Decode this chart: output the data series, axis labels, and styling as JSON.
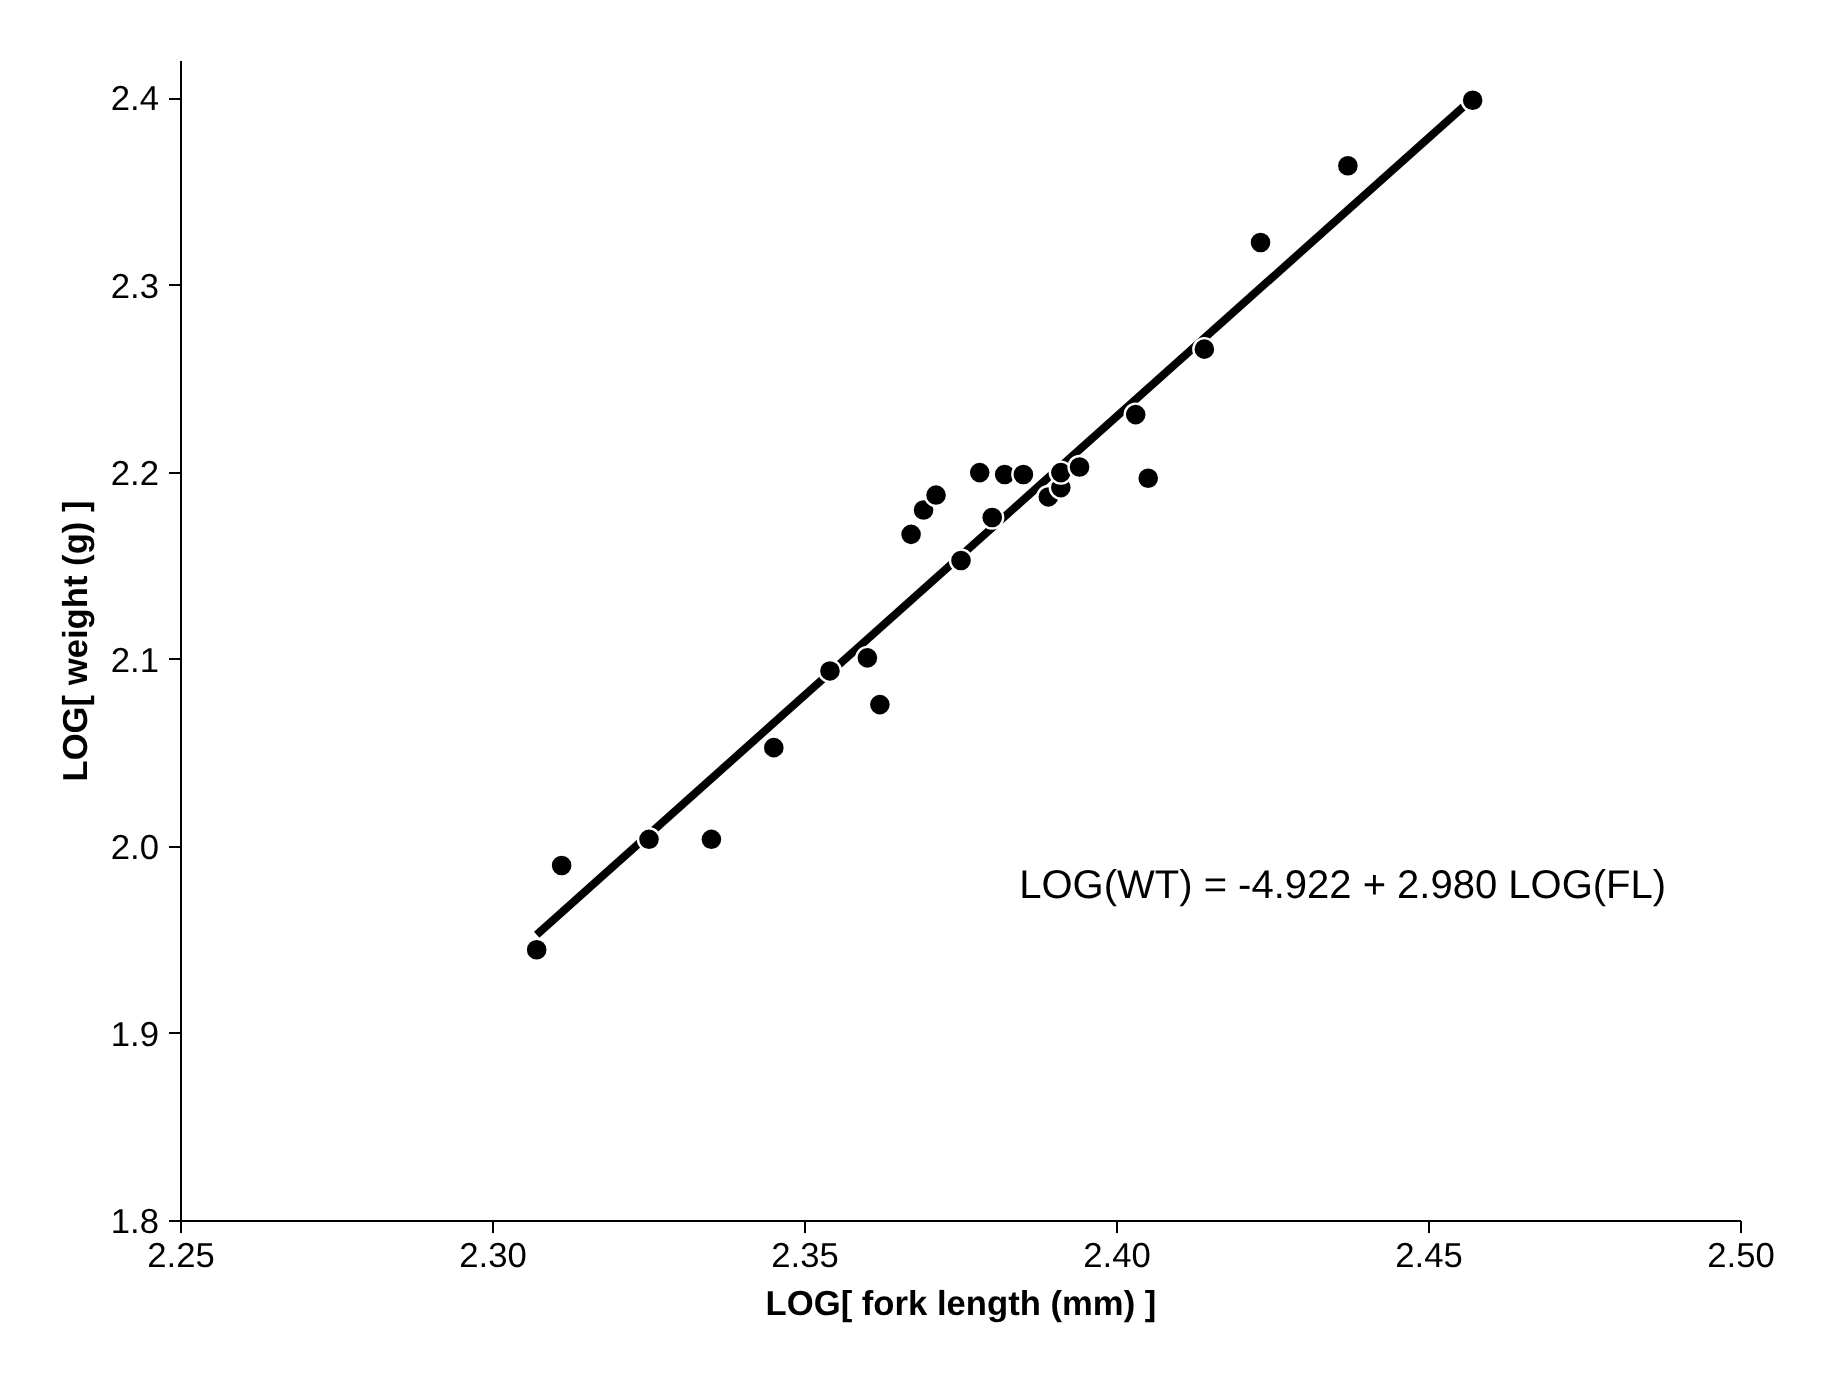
{
  "chart_data": {
    "type": "scatter",
    "xlabel": "LOG[ fork length (mm) ]",
    "ylabel": "LOG[ weight (g) ]",
    "xlim": [
      2.25,
      2.5
    ],
    "xticks": [
      {
        "value": 2.25,
        "label": "2.25"
      },
      {
        "value": 2.3,
        "label": "2.30"
      },
      {
        "value": 2.35,
        "label": "2.35"
      },
      {
        "value": 2.4,
        "label": "2.40"
      },
      {
        "value": 2.45,
        "label": "2.45"
      },
      {
        "value": 2.5,
        "label": "2.50"
      }
    ],
    "ylim": [
      1.8,
      2.42
    ],
    "yticks": [
      {
        "value": 1.8,
        "label": "1.8"
      },
      {
        "value": 1.9,
        "label": "1.9"
      },
      {
        "value": 2.0,
        "label": "2.0"
      },
      {
        "value": 2.1,
        "label": "2.1"
      },
      {
        "value": 2.2,
        "label": "2.2"
      },
      {
        "value": 2.3,
        "label": "2.3"
      },
      {
        "value": 2.4,
        "label": "2.4"
      }
    ],
    "grid": false,
    "marker": "circle",
    "annotations": [
      "LOG(WT) = -4.922 + 2.980 LOG(FL)"
    ],
    "series": [
      {
        "type": "line",
        "marker": "none",
        "color": "#000000",
        "x": [
          2.307,
          2.457
        ],
        "values": [
          1.953,
          2.4
        ]
      },
      {
        "color": "#000000",
        "x": [
          2.307,
          2.311,
          2.325,
          2.335,
          2.345,
          2.354,
          2.36,
          2.362,
          2.367,
          2.369,
          2.371,
          2.375,
          2.378,
          2.38,
          2.382,
          2.385,
          2.389,
          2.391,
          2.391,
          2.394,
          2.403,
          2.405,
          2.414,
          2.423,
          2.437,
          2.457
        ],
        "values": [
          1.945,
          1.99,
          2.004,
          2.004,
          2.053,
          2.094,
          2.101,
          2.076,
          2.167,
          2.18,
          2.188,
          2.153,
          2.2,
          2.176,
          2.199,
          2.199,
          2.187,
          2.192,
          2.2,
          2.203,
          2.231,
          2.197,
          2.266,
          2.323,
          2.364,
          2.399
        ]
      }
    ]
  }
}
